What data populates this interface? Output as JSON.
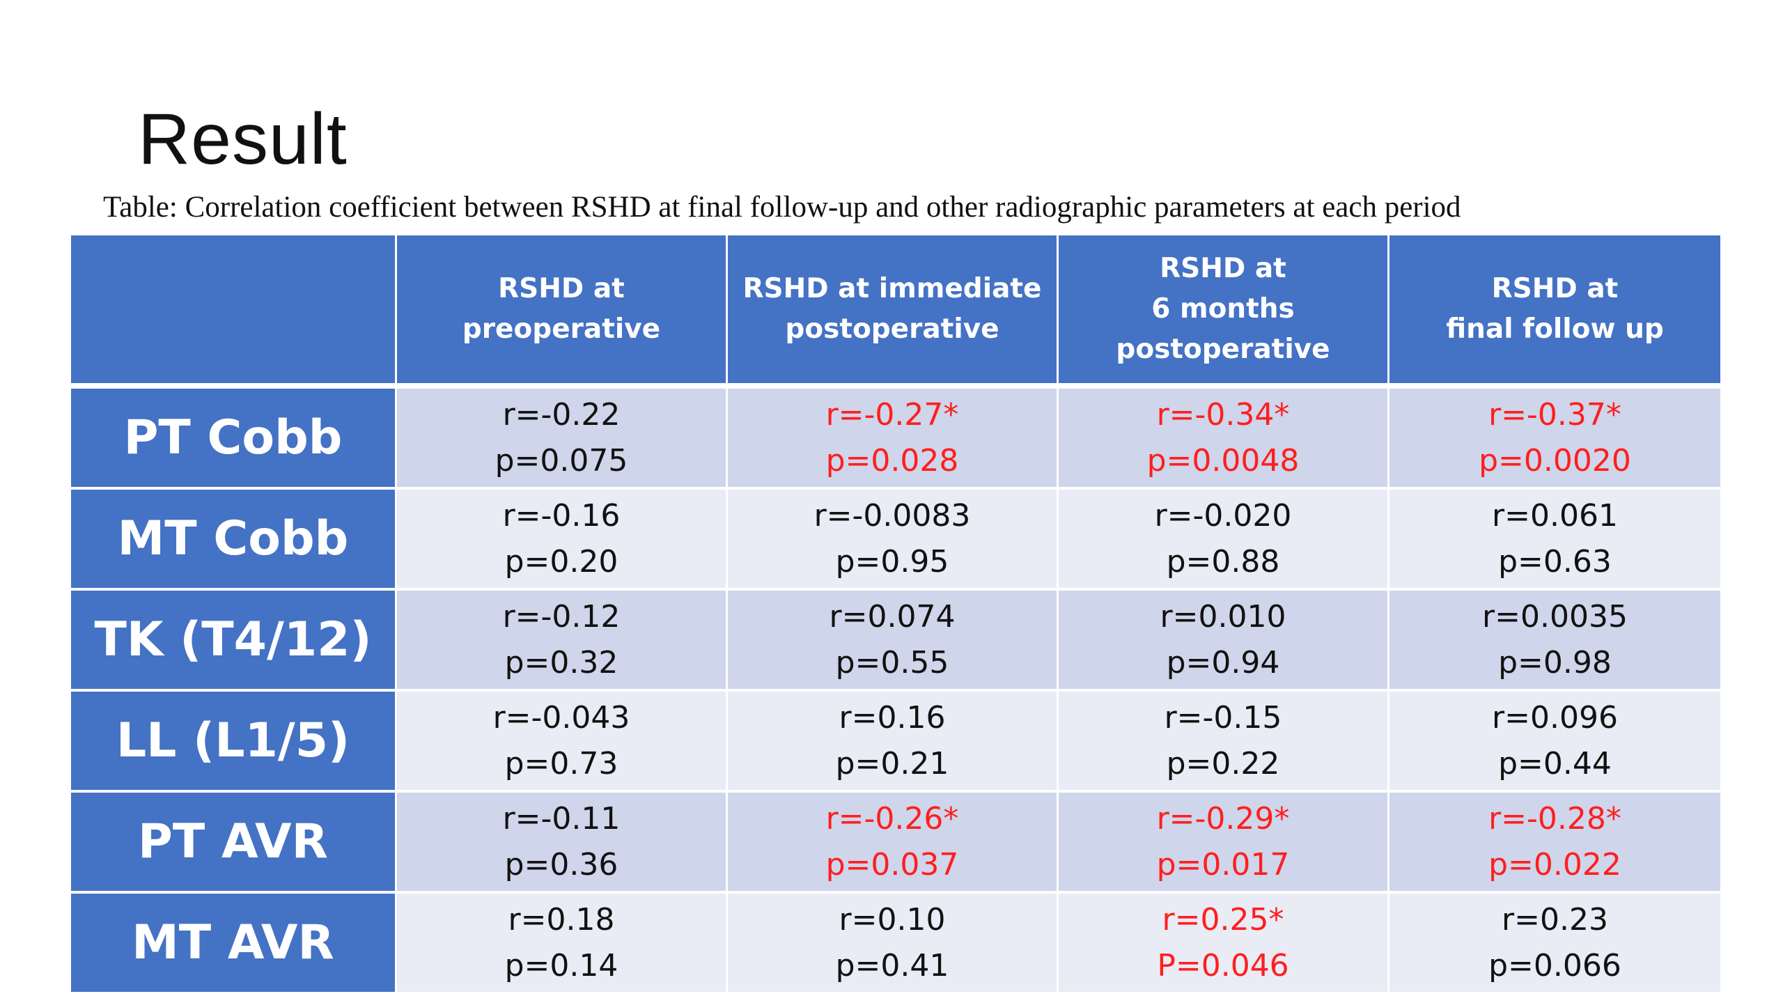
{
  "slide": {
    "title": "Result",
    "caption": "Table: Correlation coefficient between RSHD at final follow-up and other radiographic parameters at each period"
  },
  "colors": {
    "header_bg": "#4472C4",
    "row_dark_bg": "#CFD5EA",
    "row_light_bg": "#E9EBF5",
    "significant_text": "#FF1E1E",
    "normal_text": "#111111"
  },
  "table": {
    "columns": [
      "",
      "RSHD at preoperative",
      "RSHD at immediate\npostoperative",
      "RSHD at\n6 months\npostoperative",
      "RSHD at\nfinal follow up"
    ],
    "rows": [
      {
        "label": "PT Cobb",
        "cells": [
          {
            "r": "r=-0.22",
            "p": "p=0.075",
            "significant": false
          },
          {
            "r": "r=-0.27*",
            "p": "p=0.028",
            "significant": true
          },
          {
            "r": "r=-0.34*",
            "p": "p=0.0048",
            "significant": true
          },
          {
            "r": "r=-0.37*",
            "p": "p=0.0020",
            "significant": true
          }
        ]
      },
      {
        "label": "MT Cobb",
        "cells": [
          {
            "r": "r=-0.16",
            "p": "p=0.20",
            "significant": false
          },
          {
            "r": "r=-0.0083",
            "p": "p=0.95",
            "significant": false
          },
          {
            "r": "r=-0.020",
            "p": "p=0.88",
            "significant": false
          },
          {
            "r": "r=0.061",
            "p": "p=0.63",
            "significant": false
          }
        ]
      },
      {
        "label": "TK (T4/12)",
        "cells": [
          {
            "r": "r=-0.12",
            "p": "p=0.32",
            "significant": false
          },
          {
            "r": "r=0.074",
            "p": "p=0.55",
            "significant": false
          },
          {
            "r": "r=0.010",
            "p": "p=0.94",
            "significant": false
          },
          {
            "r": "r=0.0035",
            "p": "p=0.98",
            "significant": false
          }
        ]
      },
      {
        "label": "LL (L1/5)",
        "cells": [
          {
            "r": "r=-0.043",
            "p": "p=0.73",
            "significant": false
          },
          {
            "r": "r=0.16",
            "p": "p=0.21",
            "significant": false
          },
          {
            "r": "r=-0.15",
            "p": "p=0.22",
            "significant": false
          },
          {
            "r": "r=0.096",
            "p": "p=0.44",
            "significant": false
          }
        ]
      },
      {
        "label": "PT AVR",
        "cells": [
          {
            "r": "r=-0.11",
            "p": "p=0.36",
            "significant": false
          },
          {
            "r": "r=-0.26*",
            "p": "p=0.037",
            "significant": true
          },
          {
            "r": "r=-0.29*",
            "p": "p=0.017",
            "significant": true
          },
          {
            "r": "r=-0.28*",
            "p": "p=0.022",
            "significant": true
          }
        ]
      },
      {
        "label": "MT AVR",
        "cells": [
          {
            "r": "r=0.18",
            "p": "p=0.14",
            "significant": false
          },
          {
            "r": "r=0.10",
            "p": "p=0.41",
            "significant": false
          },
          {
            "r": "r=0.25*",
            "p": "P=0.046",
            "significant": true
          },
          {
            "r": "r=0.23",
            "p": "p=0.066",
            "significant": false
          }
        ]
      }
    ]
  }
}
